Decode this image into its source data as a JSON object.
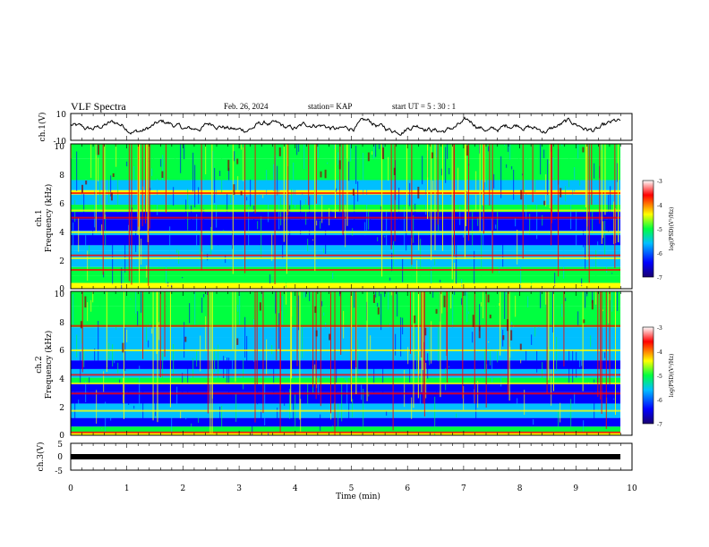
{
  "header": {
    "title": "VLF Spectra",
    "date": "Feb. 26, 2024",
    "station": "station= KAP",
    "start": "start  UT =   5 : 30 : 1"
  },
  "colors": {
    "scale": [
      "#1a0070",
      "#0000ff",
      "#00bfff",
      "#00ff40",
      "#ffff00",
      "#ff0000",
      "#ffffff"
    ]
  },
  "chart_data": [
    {
      "type": "line",
      "panel": "ch1-waveform",
      "ylabel": "ch.1(V)",
      "ylim": [
        -10,
        10
      ],
      "yticks": [
        "10",
        "-10"
      ],
      "xlim": [
        0,
        10
      ]
    },
    {
      "type": "heatmap",
      "panel": "ch1-spectrogram",
      "ylabel": "ch.1",
      "ylabel2": "Frequency (kHz)",
      "ylim": [
        0,
        10
      ],
      "yticks": [
        "0",
        "2",
        "4",
        "6",
        "8",
        "10"
      ],
      "colorbar": {
        "label": "log(PSD)(V²/Hz)",
        "range": [
          -7,
          -3
        ],
        "ticks": [
          "-3",
          "-4",
          "-5",
          "-6",
          "-7"
        ]
      }
    },
    {
      "type": "heatmap",
      "panel": "ch2-spectrogram",
      "ylabel": "ch.2",
      "ylabel2": "Frequency (kHz)",
      "ylim": [
        0,
        10
      ],
      "yticks": [
        "0",
        "2",
        "4",
        "6",
        "8",
        "10"
      ],
      "colorbar": {
        "label": "log(PSD)(V²/Hz)",
        "range": [
          -7,
          -3
        ],
        "ticks": [
          "-3",
          "-4",
          "-5",
          "-6",
          "-7"
        ]
      }
    },
    {
      "type": "line",
      "panel": "ch3-waveform",
      "ylabel": "ch.3(V)",
      "ylim": [
        -5,
        5
      ],
      "yticks": [
        "5",
        "0",
        "-5"
      ],
      "xlabel": "Time (min)",
      "xlim": [
        0,
        10
      ],
      "xticks": [
        "0",
        "1",
        "2",
        "3",
        "4",
        "5",
        "6",
        "7",
        "8",
        "9",
        "10"
      ],
      "series": [
        {
          "x": [
            0,
            9.8
          ],
          "y": [
            0,
            0
          ]
        }
      ]
    }
  ]
}
